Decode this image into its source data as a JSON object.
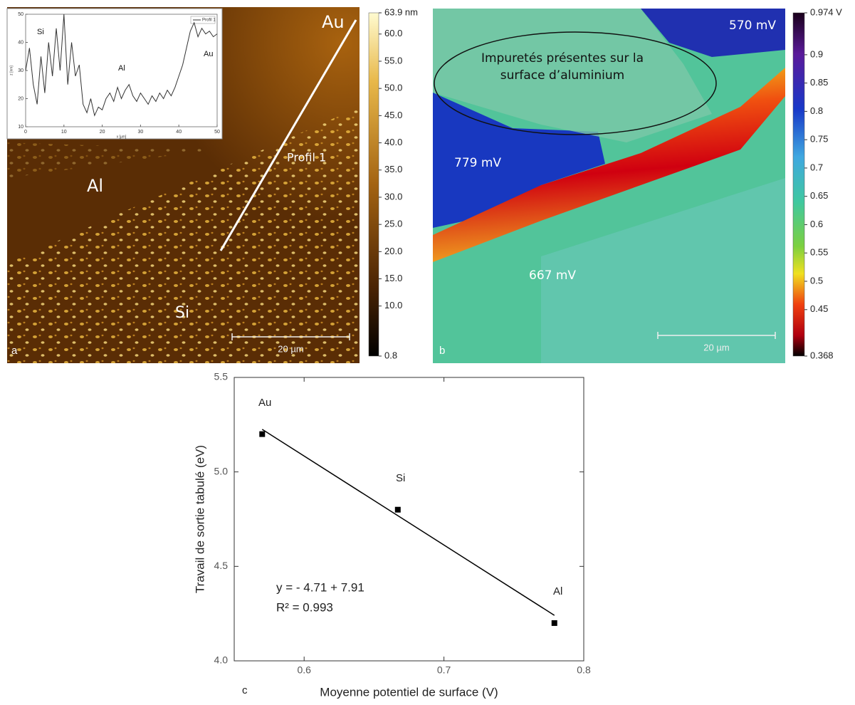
{
  "chart_data": [
    {
      "type": "image",
      "panel_label": "a",
      "annotations": [
        "Au",
        "Al",
        "Si",
        "Profil 1"
      ],
      "scale_bar": "20 µm",
      "colorbar": {
        "lim": [
          0.8,
          63.9
        ],
        "ticks": [
          {
            "value": 63.9,
            "label": "63.9 nm"
          },
          {
            "value": 60,
            "label": "60.0"
          },
          {
            "value": 55,
            "label": "55.0"
          },
          {
            "value": 50,
            "label": "50.0"
          },
          {
            "value": 45,
            "label": "45.0"
          },
          {
            "value": 40,
            "label": "40.0"
          },
          {
            "value": 35,
            "label": "35.0"
          },
          {
            "value": 30,
            "label": "30.0"
          },
          {
            "value": 25,
            "label": "25.0"
          },
          {
            "value": 20,
            "label": "20.0"
          },
          {
            "value": 15,
            "label": "15.0"
          },
          {
            "value": 10,
            "label": "10.0"
          },
          0.8
        ]
      }
    },
    {
      "type": "line",
      "x_label": "x [µm]",
      "y_label": "z [nm]",
      "annotations": [
        "Si",
        "Al",
        "Au"
      ],
      "series": [
        {
          "name": "Profil 1",
          "color": "#333333",
          "values": [
            30,
            38,
            25,
            18,
            35,
            22,
            40,
            28,
            45,
            30,
            50,
            25,
            40,
            28,
            32,
            18,
            15,
            20,
            14,
            17,
            16,
            20,
            22,
            19,
            24,
            20,
            23,
            25,
            21,
            19,
            22,
            20,
            18,
            21,
            19,
            22,
            20,
            23,
            21,
            24,
            28,
            32,
            38,
            44,
            47,
            42,
            45,
            43,
            44,
            42,
            43
          ]
        }
      ],
      "x": [
        0,
        1,
        2,
        3,
        4,
        5,
        6,
        7,
        8,
        9,
        10,
        11,
        12,
        13,
        14,
        15,
        16,
        17,
        18,
        19,
        20,
        21,
        22,
        23,
        24,
        25,
        26,
        27,
        28,
        29,
        30,
        31,
        32,
        33,
        34,
        35,
        36,
        37,
        38,
        39,
        40,
        41,
        42,
        43,
        44,
        45,
        46,
        47,
        48,
        49,
        50
      ],
      "xlim": [
        0,
        50
      ],
      "xticks": [
        0,
        10,
        20,
        30,
        40,
        50
      ],
      "ylim": [
        10,
        50
      ],
      "yticks": [
        10,
        20,
        30,
        40,
        50
      ]
    },
    {
      "type": "image",
      "panel_label": "b",
      "annotations": [
        "570 mV",
        "779 mV",
        "667 mV",
        "Impuretés présentes sur la surface d’aluminium"
      ],
      "scale_bar": "20 µm",
      "colorbar": {
        "lim": [
          0.368,
          0.974
        ],
        "ticks": [
          {
            "value": 0.974,
            "label": "0.974 V"
          },
          0.9,
          0.85,
          0.8,
          0.75,
          0.7,
          0.65,
          0.6,
          0.55,
          0.5,
          0.45,
          0.368
        ]
      }
    },
    {
      "type": "scatter",
      "panel_label": "c",
      "x_label": "Moyenne potentiel de surface (V)",
      "y_label": "Travail de sortie tabulé (eV)",
      "x": [
        0.57,
        0.667,
        0.779
      ],
      "values": [
        5.2,
        4.8,
        4.2
      ],
      "point_labels": [
        "Au",
        "Si",
        "Al"
      ],
      "color": "#000000",
      "fit": {
        "slope": -4.71,
        "intercept": 7.91
      },
      "annotations": [
        "y = - 4.71 + 7.91",
        "R² = 0.993"
      ],
      "xlim": [
        0.55,
        0.8
      ],
      "xticks": [
        0.6,
        0.7,
        0.8
      ],
      "ylim": [
        4.0,
        5.5
      ],
      "yticks": [
        {
          "value": 4.0,
          "label": "4.0"
        },
        {
          "value": 4.5,
          "label": "4.5"
        },
        {
          "value": 5.0,
          "label": "5.0"
        },
        {
          "value": 5.5,
          "label": "5.5"
        }
      ]
    }
  ]
}
